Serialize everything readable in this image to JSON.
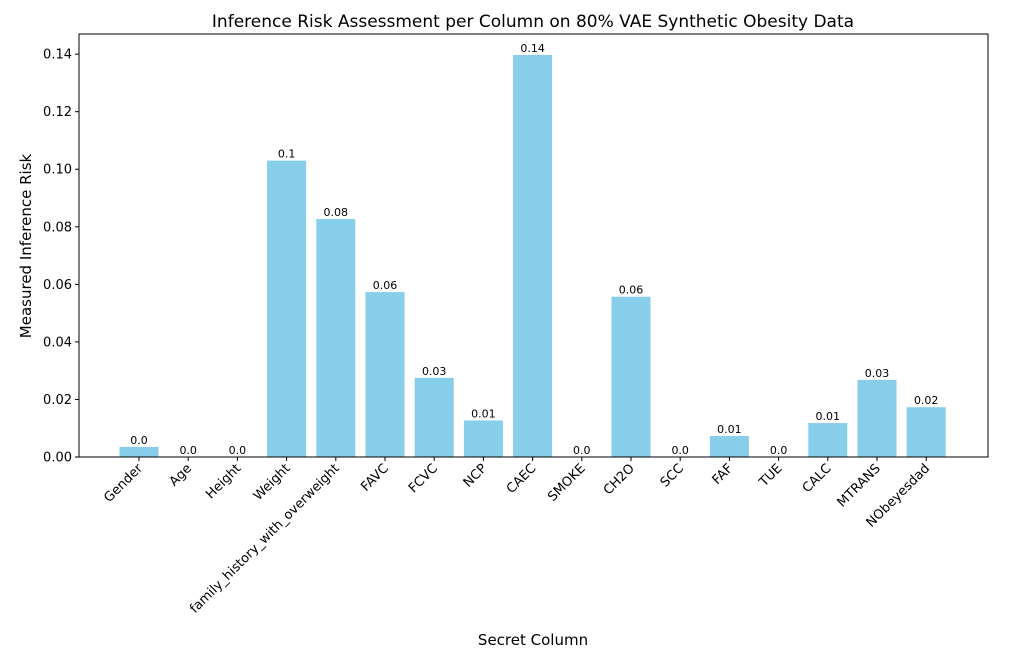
{
  "chart_data": {
    "type": "bar",
    "title": "Inference Risk Assessment per Column on 80% VAE Synthetic Obesity Data",
    "xlabel": "Secret Column",
    "ylabel": "Measured Inference Risk",
    "ylim": [
      0,
      0.147
    ],
    "yticks": [
      "0.00",
      "0.02",
      "0.04",
      "0.06",
      "0.08",
      "0.10",
      "0.12",
      "0.14"
    ],
    "grid": false,
    "bar_color": "#87ceeb",
    "categories": [
      "Gender",
      "Age",
      "Height",
      "Weight",
      "family_history_with_overweight",
      "FAVC",
      "FCVC",
      "NCP",
      "CAEC",
      "SMOKE",
      "CH2O",
      "SCC",
      "FAF",
      "TUE",
      "CALC",
      "MTRANS",
      "NObeyesdad"
    ],
    "values": [
      0.0035,
      0.0,
      0.0,
      0.103,
      0.0827,
      0.0573,
      0.0275,
      0.0127,
      0.1397,
      0.0,
      0.0557,
      0.0,
      0.0073,
      0.0,
      0.0118,
      0.0268,
      0.0173
    ],
    "data_labels": [
      "0.0",
      "0.0",
      "0.0",
      "0.1",
      "0.08",
      "0.06",
      "0.03",
      "0.01",
      "0.14",
      "0.0",
      "0.06",
      "0.0",
      "0.01",
      "0.0",
      "0.01",
      "0.03",
      "0.02"
    ]
  }
}
